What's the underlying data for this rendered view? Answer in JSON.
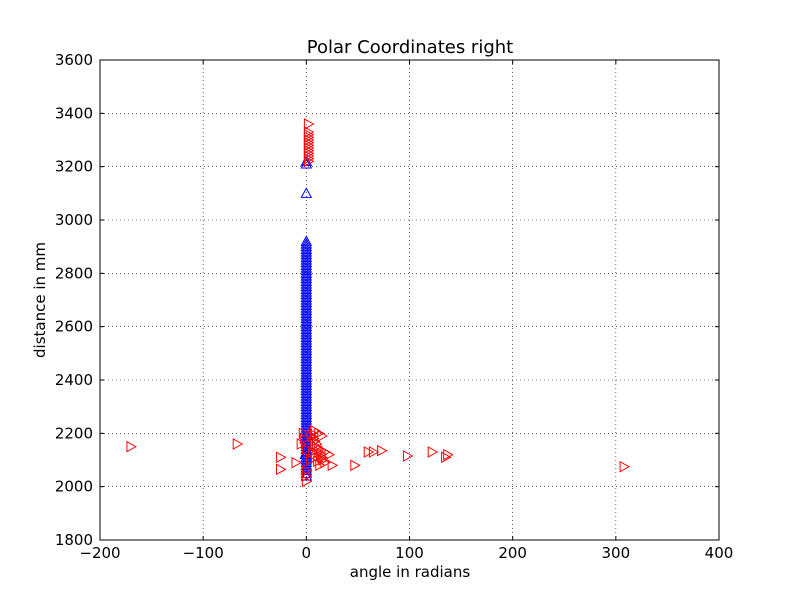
{
  "chart_data": {
    "type": "scatter",
    "title": "Polar Coordinates right",
    "xlabel": "angle in radians",
    "ylabel": "distance in mm",
    "xlim": [
      -200,
      400
    ],
    "ylim": [
      1800,
      3600
    ],
    "xticks": [
      -200,
      -100,
      0,
      100,
      200,
      300,
      400
    ],
    "yticks": [
      1800,
      2000,
      2200,
      2400,
      2600,
      2800,
      3000,
      3200,
      3400,
      3600
    ],
    "xtick_labels": [
      "−200",
      "−100",
      "0",
      "100",
      "200",
      "300",
      "400"
    ],
    "ytick_labels": [
      "1800",
      "2000",
      "2200",
      "2400",
      "2600",
      "2800",
      "3000",
      "3200",
      "3400",
      "3600"
    ],
    "grid": true,
    "series": [
      {
        "marker": "triangle-up",
        "color": "#0000ff",
        "points": [
          [
            0,
            3100
          ],
          [
            0,
            3210
          ],
          [
            0,
            3220
          ],
          [
            0,
            2920
          ],
          [
            0,
            2910
          ],
          [
            0,
            2900
          ],
          [
            0,
            2890
          ],
          [
            0,
            2880
          ],
          [
            0,
            2870
          ],
          [
            0,
            2860
          ],
          [
            0,
            2850
          ],
          [
            0,
            2840
          ],
          [
            0,
            2830
          ],
          [
            0,
            2820
          ],
          [
            0,
            2810
          ],
          [
            0,
            2800
          ],
          [
            0,
            2790
          ],
          [
            0,
            2780
          ],
          [
            0,
            2770
          ],
          [
            0,
            2760
          ],
          [
            0,
            2750
          ],
          [
            0,
            2740
          ],
          [
            0,
            2730
          ],
          [
            0,
            2720
          ],
          [
            0,
            2710
          ],
          [
            0,
            2700
          ],
          [
            0,
            2690
          ],
          [
            0,
            2680
          ],
          [
            0,
            2670
          ],
          [
            0,
            2660
          ],
          [
            0,
            2650
          ],
          [
            0,
            2640
          ],
          [
            0,
            2630
          ],
          [
            0,
            2620
          ],
          [
            0,
            2610
          ],
          [
            0,
            2600
          ],
          [
            0,
            2590
          ],
          [
            0,
            2580
          ],
          [
            0,
            2570
          ],
          [
            0,
            2560
          ],
          [
            0,
            2550
          ],
          [
            0,
            2540
          ],
          [
            0,
            2530
          ],
          [
            0,
            2520
          ],
          [
            0,
            2510
          ],
          [
            0,
            2500
          ],
          [
            0,
            2490
          ],
          [
            0,
            2480
          ],
          [
            0,
            2470
          ],
          [
            0,
            2460
          ],
          [
            0,
            2450
          ],
          [
            0,
            2440
          ],
          [
            0,
            2430
          ],
          [
            0,
            2420
          ],
          [
            0,
            2410
          ],
          [
            0,
            2400
          ],
          [
            0,
            2390
          ],
          [
            0,
            2380
          ],
          [
            0,
            2370
          ],
          [
            0,
            2360
          ],
          [
            0,
            2350
          ],
          [
            0,
            2340
          ],
          [
            0,
            2330
          ],
          [
            0,
            2320
          ],
          [
            0,
            2310
          ],
          [
            0,
            2300
          ],
          [
            0,
            2290
          ],
          [
            0,
            2280
          ],
          [
            0,
            2270
          ],
          [
            0,
            2260
          ],
          [
            0,
            2250
          ],
          [
            0,
            2240
          ],
          [
            0,
            2230
          ],
          [
            0,
            2220
          ],
          [
            0,
            2210
          ],
          [
            0,
            2200
          ],
          [
            0,
            2190
          ],
          [
            0,
            2180
          ],
          [
            0,
            2170
          ],
          [
            0,
            2160
          ],
          [
            0,
            2150
          ],
          [
            0,
            2140
          ],
          [
            0,
            2130
          ],
          [
            0,
            2120
          ],
          [
            0,
            2110
          ],
          [
            0,
            2100
          ],
          [
            0,
            2090
          ],
          [
            0,
            2080
          ],
          [
            0,
            2070
          ],
          [
            0,
            2060
          ],
          [
            0,
            2050
          ],
          [
            0,
            2040
          ],
          [
            2,
            2180
          ],
          [
            -1,
            2120
          ]
        ]
      },
      {
        "marker": "triangle-right",
        "color": "#ff0000",
        "points": [
          [
            2,
            3360
          ],
          [
            2,
            3330
          ],
          [
            2,
            3320
          ],
          [
            2,
            3310
          ],
          [
            2,
            3300
          ],
          [
            2,
            3290
          ],
          [
            2,
            3280
          ],
          [
            2,
            3270
          ],
          [
            2,
            3260
          ],
          [
            2,
            3250
          ],
          [
            2,
            3240
          ],
          [
            2,
            3230
          ],
          [
            2,
            3220
          ],
          [
            -170,
            2150
          ],
          [
            -67,
            2160
          ],
          [
            -25,
            2110
          ],
          [
            -25,
            2065
          ],
          [
            -10,
            2090
          ],
          [
            -5,
            2160
          ],
          [
            -3,
            2200
          ],
          [
            -2,
            2180
          ],
          [
            0,
            2140
          ],
          [
            0,
            2060
          ],
          [
            0,
            2040
          ],
          [
            0,
            2020
          ],
          [
            5,
            2200
          ],
          [
            5,
            2190
          ],
          [
            7,
            2180
          ],
          [
            8,
            2170
          ],
          [
            10,
            2160
          ],
          [
            10,
            2150
          ],
          [
            12,
            2140
          ],
          [
            12,
            2130
          ],
          [
            14,
            2120
          ],
          [
            15,
            2110
          ],
          [
            16,
            2100
          ],
          [
            18,
            2090
          ],
          [
            8,
            2210
          ],
          [
            12,
            2200
          ],
          [
            15,
            2190
          ],
          [
            6,
            2130
          ],
          [
            9,
            2110
          ],
          [
            11,
            2095
          ],
          [
            13,
            2080
          ],
          [
            4,
            2100
          ],
          [
            18,
            2130
          ],
          [
            22,
            2120
          ],
          [
            25,
            2080
          ],
          [
            47,
            2080
          ],
          [
            60,
            2130
          ],
          [
            65,
            2130
          ],
          [
            73,
            2135
          ],
          [
            98,
            2115
          ],
          [
            122,
            2130
          ],
          [
            135,
            2110
          ],
          [
            137,
            2120
          ],
          [
            308,
            2075
          ]
        ]
      }
    ]
  }
}
